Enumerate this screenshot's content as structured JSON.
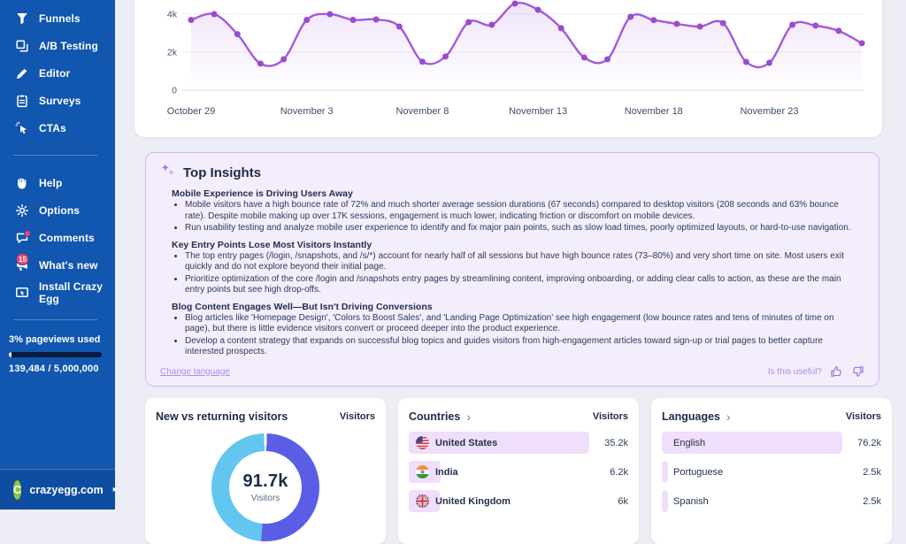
{
  "sidebar": {
    "nav_top": [
      {
        "label": "Funnels",
        "icon": "funnel"
      },
      {
        "label": "A/B Testing",
        "icon": "ab-testing"
      },
      {
        "label": "Editor",
        "icon": "pencil"
      },
      {
        "label": "Surveys",
        "icon": "clipboard"
      },
      {
        "label": "CTAs",
        "icon": "cursor-click"
      }
    ],
    "nav_bottom": [
      {
        "label": "Help",
        "icon": "hand-help"
      },
      {
        "label": "Options",
        "icon": "gear"
      },
      {
        "label": "Comments",
        "icon": "comment",
        "badge": "dot"
      },
      {
        "label": "What's new",
        "icon": "megaphone",
        "badge": "15"
      },
      {
        "label": "Install Crazy Egg",
        "icon": "monitor-install"
      }
    ],
    "usage": {
      "label": "3% pageviews used",
      "detail": "139,484 / 5,000,000",
      "percent": 3
    },
    "site": {
      "label": "crazyegg.com",
      "logo_letter": "C",
      "arrow": "▸"
    }
  },
  "chart_data": [
    {
      "type": "line",
      "values": [
        3700,
        4000,
        2950,
        1400,
        1630,
        3700,
        4000,
        3700,
        3720,
        3350,
        1500,
        1770,
        3580,
        3440,
        4560,
        4230,
        3260,
        1720,
        1630,
        3860,
        3690,
        3490,
        3350,
        3530,
        1490,
        1440,
        3440,
        3400,
        3120,
        2470
      ],
      "x_tick_labels": [
        "October 29",
        "November 3",
        "November 8",
        "November 13",
        "November 18",
        "November 23"
      ],
      "x_tick_indices": [
        0,
        5,
        10,
        15,
        20,
        25
      ],
      "y_ticks": [
        {
          "label": "4k",
          "value": 4000
        },
        {
          "label": "2k",
          "value": 2000
        },
        {
          "label": "0",
          "value": 0
        }
      ],
      "ylim": [
        0,
        4800
      ],
      "grid": true,
      "line_color": "#a25ad8",
      "point_color": "#9a4bd0"
    },
    {
      "type": "donut",
      "center_value": "91.7k",
      "center_label": "Visitors",
      "segments": [
        {
          "color": "#5a5ee6",
          "fraction": 0.513
        },
        {
          "color": "#62c6f0",
          "fraction": 0.487
        }
      ]
    }
  ],
  "insights": {
    "title": "Top Insights",
    "sections": [
      {
        "heading": "Mobile Experience is Driving Users Away",
        "bullets": [
          "Mobile visitors have a high bounce rate of 72% and much shorter average session durations (67 seconds) compared to desktop visitors (208 seconds and 63% bounce rate). Despite mobile making up over 17K sessions, engagement is much lower, indicating friction or discomfort on mobile devices.",
          "Run usability testing and analyze mobile user experience to identify and fix major pain points, such as slow load times, poorly optimized layouts, or hard-to-use navigation."
        ]
      },
      {
        "heading": "Key Entry Points Lose Most Visitors Instantly",
        "bullets": [
          "The top entry pages (/login, /snapshots, and /s/*) account for nearly half of all sessions but have high bounce rates (73–80%) and very short time on site. Most users exit quickly and do not explore beyond their initial page.",
          "Prioritize optimization of the core /login and /snapshots entry pages by streamlining content, improving onboarding, or adding clear calls to action, as these are the main entry points but see high drop-offs."
        ]
      },
      {
        "heading": "Blog Content Engages Well—But Isn't Driving Conversions",
        "bullets": [
          "Blog articles like 'Homepage Design', 'Colors to Boost Sales', and 'Landing Page Optimization' see high engagement (low bounce rates and tens of minutes of time on page), but there is little evidence visitors convert or proceed deeper into the product experience.",
          "Develop a content strategy that expands on successful blog topics and guides visitors from high-engagement articles toward sign-up or trial pages to better capture interested prospects."
        ]
      }
    ],
    "change_language": "Change language",
    "useful_label": "Is this useful?"
  },
  "cards": {
    "visitors": {
      "title": "New vs returning visitors",
      "column": "Visitors"
    },
    "countries": {
      "title": "Countries",
      "chevron": "›",
      "column": "Visitors",
      "rows": [
        {
          "flag": "us",
          "name": "United States",
          "value": 35200,
          "display": "35.2k"
        },
        {
          "flag": "in",
          "name": "India",
          "value": 6200,
          "display": "6.2k"
        },
        {
          "flag": "gb",
          "name": "United Kingdom",
          "value": 6000,
          "display": "6k"
        }
      ]
    },
    "languages": {
      "title": "Languages",
      "chevron": "›",
      "column": "Visitors",
      "rows": [
        {
          "name": "English",
          "value": 76200,
          "display": "76.2k"
        },
        {
          "name": "Portuguese",
          "value": 2500,
          "display": "2.5k"
        },
        {
          "name": "Spanish",
          "value": 2500,
          "display": "2.5k"
        }
      ]
    }
  }
}
